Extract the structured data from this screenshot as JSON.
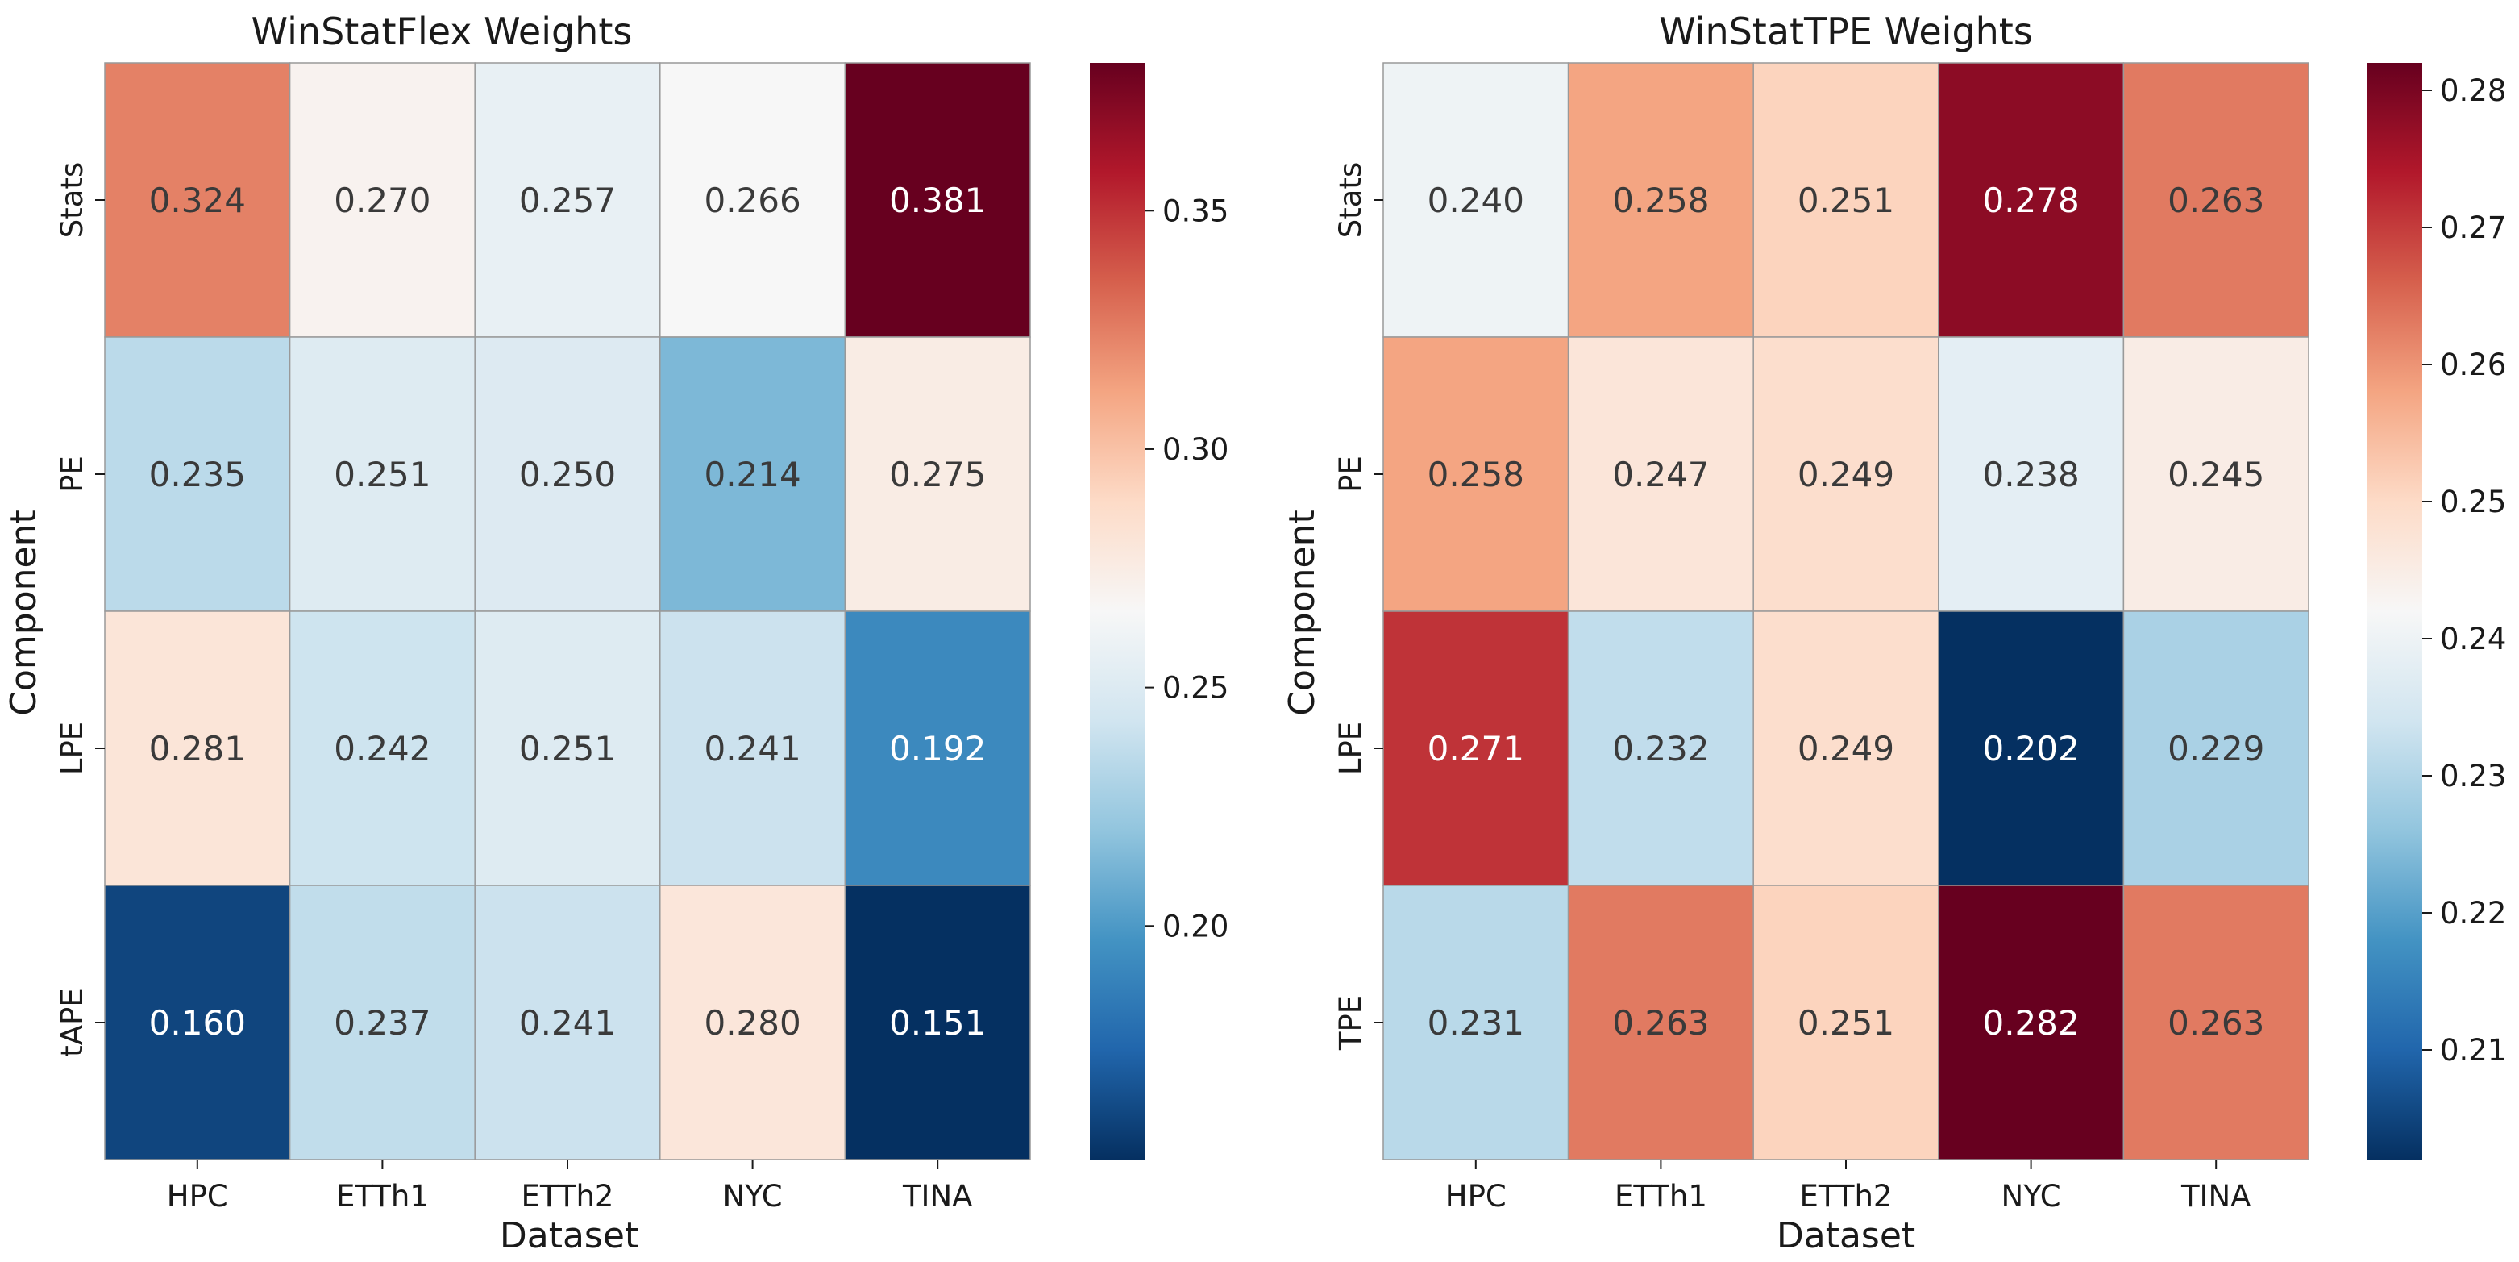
{
  "chart_data": [
    {
      "type": "heatmap",
      "title": "WinStatFlex Weights",
      "xlabel": "Dataset",
      "ylabel": "Component",
      "columns": [
        "HPC",
        "ETTh1",
        "ETTh2",
        "NYC",
        "TINA"
      ],
      "rows": [
        "Stats",
        "PE",
        "LPE",
        "tAPE"
      ],
      "values": [
        [
          0.324,
          0.27,
          0.257,
          0.266,
          0.381
        ],
        [
          0.235,
          0.251,
          0.25,
          0.214,
          0.275
        ],
        [
          0.281,
          0.242,
          0.251,
          0.241,
          0.192
        ],
        [
          0.16,
          0.237,
          0.241,
          0.28,
          0.151
        ]
      ],
      "value_labels": [
        [
          "0.324",
          "0.270",
          "0.257",
          "0.266",
          "0.381"
        ],
        [
          "0.235",
          "0.251",
          "0.250",
          "0.214",
          "0.275"
        ],
        [
          "0.281",
          "0.242",
          "0.251",
          "0.241",
          "0.192"
        ],
        [
          "0.160",
          "0.237",
          "0.241",
          "0.280",
          "0.151"
        ]
      ],
      "colormap": "RdBu_r",
      "vmin": 0.151,
      "vmax": 0.381,
      "colorbar_ticks": [
        0.2,
        0.25,
        0.3,
        0.35
      ],
      "colorbar_tick_labels": [
        "0.20",
        "0.25",
        "0.30",
        "0.35"
      ]
    },
    {
      "type": "heatmap",
      "title": "WinStatTPE Weights",
      "xlabel": "Dataset",
      "ylabel": "Component",
      "columns": [
        "HPC",
        "ETTh1",
        "ETTh2",
        "NYC",
        "TINA"
      ],
      "rows": [
        "Stats",
        "PE",
        "LPE",
        "TPE"
      ],
      "values": [
        [
          0.24,
          0.258,
          0.251,
          0.278,
          0.263
        ],
        [
          0.258,
          0.247,
          0.249,
          0.238,
          0.245
        ],
        [
          0.271,
          0.232,
          0.249,
          0.202,
          0.229
        ],
        [
          0.231,
          0.263,
          0.251,
          0.282,
          0.263
        ]
      ],
      "value_labels": [
        [
          "0.240",
          "0.258",
          "0.251",
          "0.278",
          "0.263"
        ],
        [
          "0.258",
          "0.247",
          "0.249",
          "0.238",
          "0.245"
        ],
        [
          "0.271",
          "0.232",
          "0.249",
          "0.202",
          "0.229"
        ],
        [
          "0.231",
          "0.263",
          "0.251",
          "0.282",
          "0.263"
        ]
      ],
      "colormap": "RdBu_r",
      "vmin": 0.202,
      "vmax": 0.282,
      "colorbar_ticks": [
        0.21,
        0.22,
        0.23,
        0.24,
        0.25,
        0.26,
        0.27,
        0.28
      ],
      "colorbar_tick_labels": [
        "0.21",
        "0.22",
        "0.23",
        "0.24",
        "0.25",
        "0.26",
        "0.27",
        "0.28"
      ]
    }
  ],
  "colors": {
    "cell_border": "#999999",
    "text_dark": "#3a3a3a",
    "text_light": "#ffffff",
    "axis": "#1a1a1a"
  }
}
